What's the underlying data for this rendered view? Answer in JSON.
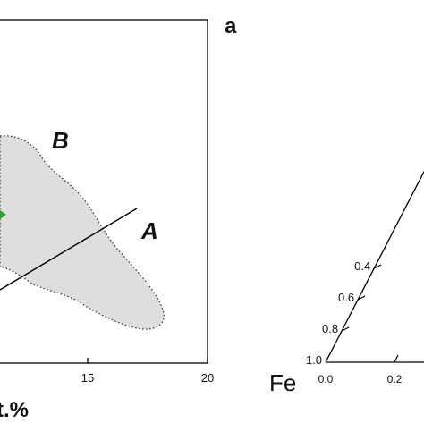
{
  "chart_data": [
    {
      "type": "scatter",
      "panel": "left",
      "xlabel": "t.%",
      "x_ticks": [
        {
          "value": 15,
          "label": "15"
        },
        {
          "value": 20,
          "label": "20"
        }
      ],
      "xlim": [
        10,
        20
      ],
      "regions": [
        {
          "label": "B",
          "style": "dotted-outline",
          "fill": "#dedede",
          "outline": "#333333"
        },
        {
          "label": "A",
          "style": "line",
          "color": "#000000"
        }
      ],
      "accent_color": "#2e9e2e"
    },
    {
      "type": "ternary",
      "panel": "right",
      "panel_label": "a",
      "vertex_label": "Fe",
      "left_edge_ticks": [
        {
          "value": 1.0,
          "label": "1.0"
        },
        {
          "value": 0.8,
          "label": "0.8"
        },
        {
          "value": 0.6,
          "label": "0.6"
        },
        {
          "value": 0.4,
          "label": "0.4"
        }
      ],
      "bottom_edge_ticks": [
        {
          "value": 0.0,
          "label": "0.0"
        },
        {
          "value": 0.2,
          "label": "0.2"
        }
      ]
    }
  ]
}
